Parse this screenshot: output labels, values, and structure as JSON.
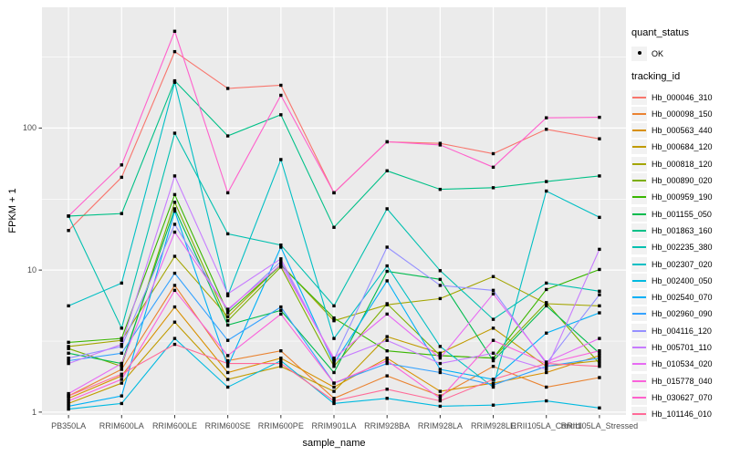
{
  "figure": {
    "y_axis_title": "FPKM + 1",
    "x_axis_title": "sample_name"
  },
  "legend": {
    "quant_status_title": "quant_status",
    "quant_status_item": "OK",
    "tracking_title": "tracking_id"
  },
  "chart_data": {
    "type": "line",
    "title": "",
    "xlabel": "sample_name",
    "ylabel": "FPKM + 1",
    "y_scale": "log10",
    "y_ticks": [
      1,
      10,
      100
    ],
    "y_minor_gridlines": [
      3.162,
      31.62,
      316.2
    ],
    "ylim": [
      0.95,
      560
    ],
    "grid": true,
    "legend_position": "right",
    "panel_background": "#ebebeb",
    "gridline_color": "#ffffff",
    "point_shape": "filled-black-square",
    "quant_status_value": "OK",
    "categories": [
      "PB350LA",
      "RRIM600LA",
      "RRIM600LE",
      "RRIM600SE",
      "RRIM600PE",
      "RRIM901LA",
      "RRIM928BA",
      "RRIM928LA",
      "RRIM928LE",
      "RRII105LA_Control",
      "RRII105LA_Stressed"
    ],
    "series": [
      {
        "name": "Hb_000046_310",
        "color": "#F8766D",
        "values": [
          19,
          45,
          345,
          190,
          200,
          35,
          80,
          78,
          66,
          98,
          84
        ]
      },
      {
        "name": "Hb_000098_150",
        "color": "#EA8331",
        "values": [
          1.3,
          2.0,
          7.8,
          2.3,
          2.7,
          1.25,
          1.8,
          1.3,
          2.1,
          1.5,
          1.75
        ]
      },
      {
        "name": "Hb_000563_440",
        "color": "#D89000",
        "values": [
          1.25,
          1.8,
          5.5,
          1.9,
          2.4,
          1.5,
          2.4,
          1.4,
          1.6,
          1.9,
          2.5
        ]
      },
      {
        "name": "Hb_000684_120",
        "color": "#C09B00",
        "values": [
          1.15,
          1.6,
          4.3,
          1.7,
          2.1,
          1.4,
          3.4,
          2.6,
          3.9,
          2.1,
          2.3
        ]
      },
      {
        "name": "Hb_000818_120",
        "color": "#A3A500",
        "values": [
          2.9,
          3.2,
          12.5,
          4.7,
          11,
          4.4,
          5.7,
          6.3,
          9.0,
          5.8,
          5.6
        ]
      },
      {
        "name": "Hb_000890_020",
        "color": "#7CAE00",
        "values": [
          2.8,
          2.1,
          30,
          4.4,
          10.5,
          2.1,
          5.8,
          2.5,
          2.4,
          5.9,
          2.2
        ]
      },
      {
        "name": "Hb_000959_190",
        "color": "#39B600",
        "values": [
          3.1,
          3.3,
          34,
          5.0,
          10.8,
          4.6,
          2.7,
          2.5,
          2.4,
          7.3,
          10.1
        ]
      },
      {
        "name": "Hb_001155_050",
        "color": "#00BB4E",
        "values": [
          2.6,
          2.2,
          27,
          4.1,
          5.2,
          1.9,
          9.8,
          8.6,
          2.3,
          5.6,
          2.6
        ]
      },
      {
        "name": "Hb_001863_160",
        "color": "#00C087",
        "values": [
          24,
          25,
          215,
          88,
          124,
          20,
          50,
          37,
          38,
          42,
          46
        ]
      },
      {
        "name": "Hb_002235_380",
        "color": "#00C0AF",
        "values": [
          24,
          3.9,
          92,
          18,
          15,
          5.6,
          27,
          9.9,
          4.5,
          8.1,
          7.1
        ]
      },
      {
        "name": "Hb_002307_020",
        "color": "#00BFC4",
        "values": [
          5.6,
          8.1,
          210,
          6.6,
          60,
          3.3,
          10.7,
          2.9,
          1.5,
          36,
          23.5
        ]
      },
      {
        "name": "Hb_002400_050",
        "color": "#00BAE0",
        "values": [
          1.05,
          1.15,
          3.3,
          1.5,
          2.3,
          1.15,
          1.25,
          1.1,
          1.12,
          1.2,
          1.07
        ]
      },
      {
        "name": "Hb_002540_070",
        "color": "#00B0F6",
        "values": [
          1.1,
          1.3,
          26,
          2.1,
          14.5,
          2.2,
          8.4,
          2.0,
          1.7,
          3.6,
          5.0
        ]
      },
      {
        "name": "Hb_002960_090",
        "color": "#35A2FF",
        "values": [
          2.3,
          2.6,
          9.5,
          3.2,
          5.5,
          1.6,
          2.2,
          1.9,
          1.55,
          2.1,
          2.4
        ]
      },
      {
        "name": "Hb_004116_120",
        "color": "#9590FF",
        "values": [
          2.4,
          2.9,
          21,
          5.2,
          11.5,
          2.35,
          14.5,
          7.8,
          7.2,
          2.2,
          6.7
        ]
      },
      {
        "name": "Hb_005701_110",
        "color": "#C77CFF",
        "values": [
          2.2,
          3.0,
          46,
          6.8,
          12,
          2.3,
          3.2,
          2.2,
          2.6,
          2.0,
          14
        ]
      },
      {
        "name": "Hb_010534_020",
        "color": "#E76BF3",
        "values": [
          1.35,
          2.2,
          18.5,
          5.3,
          10.9,
          2.4,
          4.9,
          2.4,
          6.8,
          2.25,
          3.3
        ]
      },
      {
        "name": "Hb_015778_040",
        "color": "#FA62DB",
        "values": [
          1.2,
          1.7,
          7.2,
          2.5,
          4.9,
          1.6,
          2.3,
          1.25,
          3.2,
          2.2,
          2.7
        ]
      },
      {
        "name": "Hb_030627_070",
        "color": "#FF61CC",
        "values": [
          24,
          55,
          480,
          35,
          170,
          35,
          80,
          76,
          53,
          118,
          119
        ]
      },
      {
        "name": "Hb_101146_010",
        "color": "#FF6A98",
        "values": [
          1.3,
          1.85,
          3.0,
          2.2,
          2.2,
          1.2,
          1.45,
          1.2,
          1.7,
          2.2,
          2.1
        ]
      }
    ]
  }
}
